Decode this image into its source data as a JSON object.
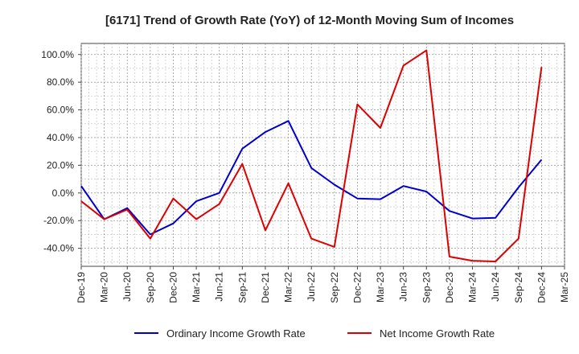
{
  "chart_data": {
    "type": "line",
    "title": "[6171]  Trend of Growth Rate (YoY) of 12-Month Moving Sum of Incomes",
    "xlabel": "",
    "ylabel": "",
    "categories": [
      "Dec-19",
      "Mar-20",
      "Jun-20",
      "Sep-20",
      "Dec-20",
      "Mar-21",
      "Jun-21",
      "Sep-21",
      "Dec-21",
      "Mar-22",
      "Jun-22",
      "Sep-22",
      "Dec-22",
      "Mar-23",
      "Jun-23",
      "Sep-23",
      "Dec-23",
      "Mar-24",
      "Jun-24",
      "Sep-24",
      "Dec-24",
      "Mar-25"
    ],
    "ylim": [
      -53,
      108
    ],
    "y_ticks": [
      100,
      80,
      60,
      40,
      20,
      0,
      -20,
      -40
    ],
    "y_tick_labels": [
      "100.0%",
      "80.0%",
      "60.0%",
      "40.0%",
      "20.0%",
      "0.0%",
      "-20.0%",
      "-40.0%"
    ],
    "grid": true,
    "legend_position": "bottom",
    "series": [
      {
        "name": "Ordinary Income Growth Rate",
        "color": "#0000cc",
        "x": [
          0,
          1,
          2,
          3,
          4,
          5,
          6,
          7,
          8,
          9,
          10,
          11,
          12,
          13,
          14,
          15,
          16,
          17,
          18,
          19,
          20
        ],
        "values": [
          5,
          -19,
          -11,
          -30,
          -22,
          -6,
          0,
          32,
          44,
          52,
          18,
          6,
          -4,
          -4.5,
          5,
          1,
          -13,
          -18.5,
          -18,
          4,
          24
        ]
      },
      {
        "name": "Net Income Growth Rate",
        "color": "#dd0000",
        "x": [
          0,
          1,
          2,
          3,
          4,
          5,
          6,
          7,
          8,
          9,
          10,
          11,
          12,
          13,
          14,
          15,
          16,
          17,
          18,
          19,
          20
        ],
        "values": [
          -6,
          -19,
          -12,
          -33,
          -4,
          -19,
          -8,
          21,
          -27,
          7,
          -33,
          -39,
          64,
          47,
          92,
          103,
          -46,
          -49,
          -49.5,
          -33,
          91
        ]
      }
    ]
  }
}
